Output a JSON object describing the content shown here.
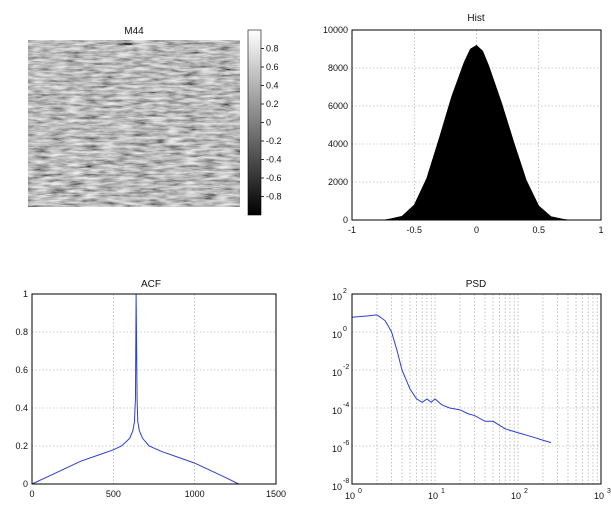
{
  "chart_data": [
    {
      "type": "heatmap",
      "title": "M44",
      "colorbar": {
        "ticks": [
          "0.8",
          "0.6",
          "0.4",
          "0.2",
          "0",
          "-0.2",
          "-0.4",
          "-0.6",
          "-0.8"
        ],
        "range": [
          -1,
          1
        ],
        "colormap": "gray"
      }
    },
    {
      "type": "bar",
      "title": "Hist",
      "xlim": [
        -1,
        1
      ],
      "ylim": [
        0,
        10000
      ],
      "xticks": [
        "-1",
        "-0.5",
        "0",
        "0.5",
        "1"
      ],
      "yticks": [
        "0",
        "2000",
        "4000",
        "6000",
        "8000",
        "10000"
      ],
      "grid": true,
      "fill": "#000000",
      "x": [
        -0.75,
        -0.7,
        -0.6,
        -0.5,
        -0.4,
        -0.3,
        -0.2,
        -0.1,
        -0.05,
        0,
        0.05,
        0.1,
        0.2,
        0.3,
        0.4,
        0.5,
        0.6,
        0.7,
        0.75
      ],
      "values": [
        0,
        50,
        200,
        800,
        2200,
        4300,
        6500,
        8300,
        9000,
        9200,
        8900,
        8100,
        6200,
        4100,
        2100,
        750,
        180,
        40,
        0
      ]
    },
    {
      "type": "line",
      "title": "ACF",
      "xlim": [
        0,
        1500
      ],
      "ylim": [
        0,
        1
      ],
      "xticks": [
        "0",
        "500",
        "1000",
        "1500"
      ],
      "yticks": [
        "0",
        "0.2",
        "0.4",
        "0.6",
        "0.8",
        "1"
      ],
      "grid": true,
      "color": "#2b3fd6",
      "series": [
        {
          "x": [
            0,
            100,
            200,
            300,
            400,
            500,
            550,
            600,
            620,
            630,
            636,
            640,
            646,
            650,
            660,
            680,
            720,
            800,
            900,
            1000,
            1100,
            1200,
            1270
          ],
          "values": [
            0,
            0.04,
            0.08,
            0.12,
            0.15,
            0.18,
            0.2,
            0.24,
            0.28,
            0.33,
            0.45,
            1,
            0.45,
            0.33,
            0.28,
            0.24,
            0.2,
            0.17,
            0.14,
            0.11,
            0.07,
            0.03,
            0
          ]
        }
      ]
    },
    {
      "type": "line",
      "title": "PSD",
      "xscale": "log",
      "yscale": "log",
      "xlim": [
        1,
        1000
      ],
      "ylim": [
        1e-08,
        100
      ],
      "xtick_bases": [
        "10",
        "10",
        "10",
        "10"
      ],
      "xtick_exponents": [
        "0",
        "1",
        "2",
        "3"
      ],
      "ytick_bases": [
        "10",
        "10",
        "10",
        "10",
        "10",
        "10"
      ],
      "ytick_exponents": [
        "2",
        "0",
        "-2",
        "-4",
        "-6",
        "-8"
      ],
      "grid": true,
      "color": "#2b3fd6",
      "series": [
        {
          "x": [
            1,
            1.5,
            2,
            2.5,
            3,
            3.5,
            4,
            5,
            6,
            7,
            8,
            9,
            10,
            12,
            15,
            20,
            25,
            30,
            40,
            50,
            70,
            100,
            150,
            200,
            250
          ],
          "values": [
            6,
            7,
            8,
            4,
            1,
            0.1,
            0.01,
            0.001,
            0.0003,
            0.0002,
            0.0003,
            0.0002,
            0.0003,
            0.00015,
            0.0001,
            8e-05,
            5e-05,
            4e-05,
            2e-05,
            2e-05,
            8e-06,
            5e-06,
            3e-06,
            2e-06,
            1.5e-06
          ]
        }
      ]
    }
  ]
}
